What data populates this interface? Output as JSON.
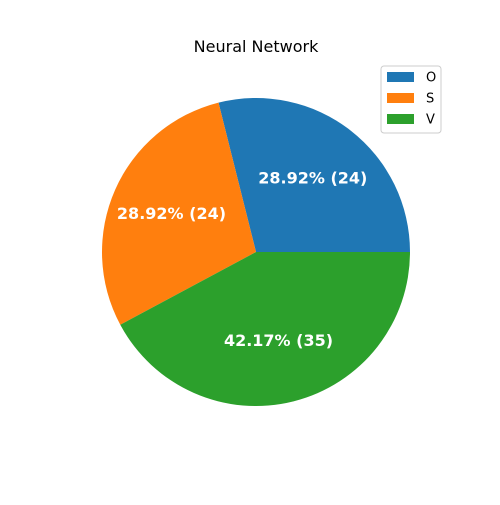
{
  "chart_data": {
    "type": "pie",
    "title": "Neural Network",
    "slices": [
      {
        "label": "O",
        "value": 24,
        "percent_label": "28.92%  (24)",
        "color": "#1f77b4"
      },
      {
        "label": "S",
        "value": 24,
        "percent_label": "28.92%  (24)",
        "color": "#ff7f0e"
      },
      {
        "label": "V",
        "value": 35,
        "percent_label": "42.17%  (35)",
        "color": "#2ca02c"
      }
    ],
    "legend_position": "top-right",
    "start_angle_deg": 0,
    "direction": "counterclockwise"
  }
}
